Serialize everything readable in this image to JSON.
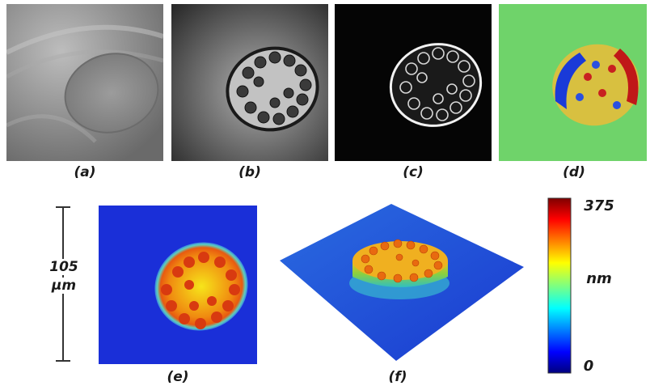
{
  "panels": [
    {
      "id": "a",
      "caption": "(a)"
    },
    {
      "id": "b",
      "caption": "(b)"
    },
    {
      "id": "c",
      "caption": "(c)"
    },
    {
      "id": "d",
      "caption": "(d)"
    },
    {
      "id": "e",
      "caption": "(e)"
    },
    {
      "id": "f",
      "caption": "(f)"
    }
  ],
  "scale_bar": {
    "value": "105",
    "unit": "µm"
  },
  "colorbar": {
    "max": "375",
    "unit": "nm",
    "min": "0"
  },
  "colors": {
    "background_field": "#1a2fd8",
    "phase_green": "#6fd36a",
    "cell_orange": "#f08a10"
  }
}
